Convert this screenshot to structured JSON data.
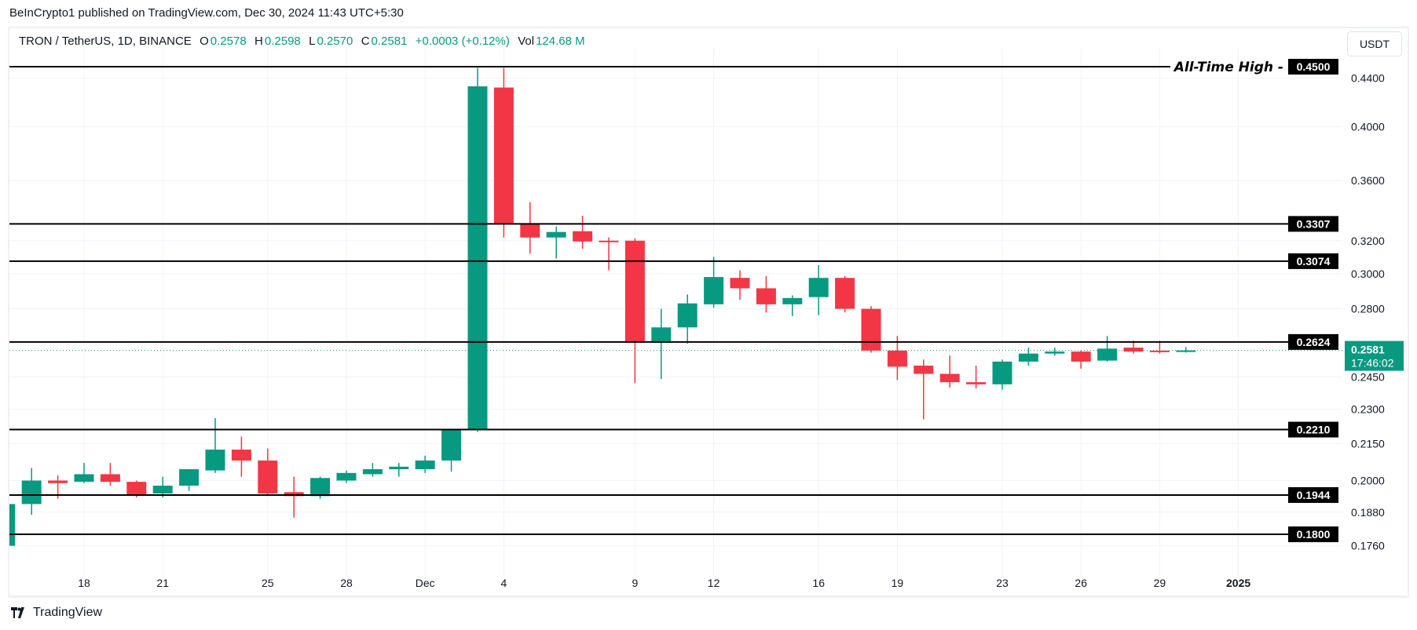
{
  "publisher_line": "BeInCrypto1 published on TradingView.com, Dec 30, 2024 11:43 UTC+5:30",
  "legend": {
    "symbol": "TRON / TetherUS, 1D, BINANCE",
    "o_label": "O",
    "o": "0.2578",
    "h_label": "H",
    "h": "0.2598",
    "l_label": "L",
    "l": "0.2570",
    "c_label": "C",
    "c": "0.2581",
    "change": "+0.0003 (+0.12%)",
    "vol_label": "Vol",
    "vol": "124.68 M"
  },
  "currency_button": "USDT",
  "brand": "TradingView",
  "colors": {
    "up": "#089981",
    "down": "#F23645",
    "level_line": "#000000",
    "grid": "#f0f3fa"
  },
  "chart_data": {
    "type": "candlestick",
    "y_scale": "log",
    "ylim": [
      0.172,
      0.452
    ],
    "xlim": [
      "2024-11-15",
      "2025-01-03"
    ],
    "grid": true,
    "y_ticks": [
      "0.4400",
      "0.4000",
      "0.3600",
      "0.3200",
      "0.3000",
      "0.2800",
      "0.2450",
      "0.2300",
      "0.2150",
      "0.2000",
      "0.1880",
      "0.1760"
    ],
    "x_ticks": [
      {
        "date": "2024-11-18",
        "label": "18"
      },
      {
        "date": "2024-11-21",
        "label": "21"
      },
      {
        "date": "2024-11-25",
        "label": "25"
      },
      {
        "date": "2024-11-28",
        "label": "28"
      },
      {
        "date": "2024-12-01",
        "label": "Dec"
      },
      {
        "date": "2024-12-04",
        "label": "4"
      },
      {
        "date": "2024-12-09",
        "label": "9"
      },
      {
        "date": "2024-12-12",
        "label": "12"
      },
      {
        "date": "2024-12-16",
        "label": "16"
      },
      {
        "date": "2024-12-19",
        "label": "19"
      },
      {
        "date": "2024-12-23",
        "label": "23"
      },
      {
        "date": "2024-12-26",
        "label": "26"
      },
      {
        "date": "2024-12-29",
        "label": "29"
      },
      {
        "date": "2025-01-01",
        "label": "2025"
      }
    ],
    "levels": [
      {
        "price": 0.45,
        "label": "0.4500",
        "annotation": "All-Time High"
      },
      {
        "price": 0.3307,
        "label": "0.3307"
      },
      {
        "price": 0.3074,
        "label": "0.3074"
      },
      {
        "price": 0.2624,
        "label": "0.2624"
      },
      {
        "price": 0.221,
        "label": "0.2210"
      },
      {
        "price": 0.1944,
        "label": "0.1944"
      },
      {
        "price": 0.18,
        "label": "0.1800"
      }
    ],
    "last_price": {
      "price": 0.2581,
      "label": "0.2581",
      "countdown": "17:46:02"
    },
    "candles": [
      [
        "2024-11-15",
        0.176,
        0.192,
        0.175,
        0.191
      ],
      [
        "2024-11-16",
        0.191,
        0.205,
        0.187,
        0.2
      ],
      [
        "2024-11-17",
        0.2,
        0.202,
        0.193,
        0.199
      ],
      [
        "2024-11-18",
        0.1995,
        0.207,
        0.199,
        0.2025
      ],
      [
        "2024-11-19",
        0.2025,
        0.207,
        0.198,
        0.1995
      ],
      [
        "2024-11-20",
        0.1995,
        0.2,
        0.1935,
        0.1945
      ],
      [
        "2024-11-21",
        0.195,
        0.2015,
        0.1935,
        0.198
      ],
      [
        "2024-11-22",
        0.198,
        0.2045,
        0.196,
        0.2045
      ],
      [
        "2024-11-23",
        0.204,
        0.226,
        0.203,
        0.2125
      ],
      [
        "2024-11-24",
        0.2125,
        0.218,
        0.2015,
        0.208
      ],
      [
        "2024-11-25",
        0.208,
        0.213,
        0.1945,
        0.195
      ],
      [
        "2024-11-26",
        0.1955,
        0.2015,
        0.186,
        0.194
      ],
      [
        "2024-11-27",
        0.194,
        0.2015,
        0.193,
        0.201
      ],
      [
        "2024-11-28",
        0.2,
        0.204,
        0.199,
        0.203
      ],
      [
        "2024-11-29",
        0.2025,
        0.207,
        0.2015,
        0.2045
      ],
      [
        "2024-11-30",
        0.2045,
        0.207,
        0.2015,
        0.2055
      ],
      [
        "2024-12-01",
        0.2045,
        0.21,
        0.203,
        0.208
      ],
      [
        "2024-12-02",
        0.208,
        0.221,
        0.2035,
        0.221
      ],
      [
        "2024-12-03",
        0.221,
        0.449,
        0.22,
        0.433
      ],
      [
        "2024-12-04",
        0.432,
        0.449,
        0.322,
        0.331
      ],
      [
        "2024-12-05",
        0.331,
        0.345,
        0.312,
        0.322
      ],
      [
        "2024-12-06",
        0.322,
        0.329,
        0.309,
        0.3255
      ],
      [
        "2024-12-07",
        0.326,
        0.336,
        0.315,
        0.3195
      ],
      [
        "2024-12-08",
        0.32,
        0.322,
        0.302,
        0.3195
      ],
      [
        "2024-12-09",
        0.32,
        0.3215,
        0.242,
        0.262
      ],
      [
        "2024-12-10",
        0.262,
        0.28,
        0.244,
        0.27
      ],
      [
        "2024-12-11",
        0.27,
        0.288,
        0.2615,
        0.283
      ],
      [
        "2024-12-12",
        0.2825,
        0.31,
        0.2805,
        0.298
      ],
      [
        "2024-12-13",
        0.2975,
        0.302,
        0.285,
        0.2915
      ],
      [
        "2024-12-14",
        0.2915,
        0.2985,
        0.278,
        0.2825
      ],
      [
        "2024-12-15",
        0.2825,
        0.2875,
        0.276,
        0.286
      ],
      [
        "2024-12-16",
        0.2865,
        0.305,
        0.2765,
        0.2975
      ],
      [
        "2024-12-17",
        0.2975,
        0.2985,
        0.278,
        0.28
      ],
      [
        "2024-12-18",
        0.28,
        0.2815,
        0.257,
        0.258
      ],
      [
        "2024-12-19",
        0.258,
        0.2655,
        0.2435,
        0.25
      ],
      [
        "2024-12-20",
        0.2505,
        0.2535,
        0.2255,
        0.2465
      ],
      [
        "2024-12-21",
        0.2465,
        0.2555,
        0.24,
        0.2425
      ],
      [
        "2024-12-22",
        0.2425,
        0.2505,
        0.2395,
        0.2415
      ],
      [
        "2024-12-23",
        0.2415,
        0.2535,
        0.239,
        0.2525
      ],
      [
        "2024-12-24",
        0.2525,
        0.2595,
        0.2505,
        0.2565
      ],
      [
        "2024-12-25",
        0.2565,
        0.2595,
        0.2555,
        0.2575
      ],
      [
        "2024-12-26",
        0.2575,
        0.258,
        0.249,
        0.2525
      ],
      [
        "2024-12-27",
        0.253,
        0.2655,
        0.2525,
        0.259
      ],
      [
        "2024-12-28",
        0.2595,
        0.263,
        0.2565,
        0.2575
      ],
      [
        "2024-12-29",
        0.258,
        0.263,
        0.2565,
        0.2575
      ],
      [
        "2024-12-30",
        0.2578,
        0.2598,
        0.257,
        0.2581
      ]
    ]
  }
}
